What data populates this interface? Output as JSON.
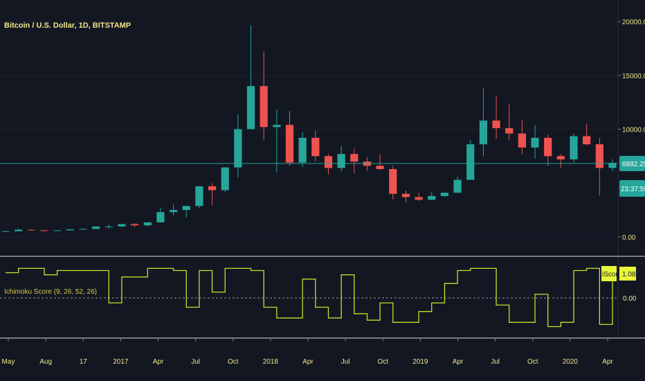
{
  "header": {
    "symbol_title": "Bitcoin / U.S. Dollar, 1D, BITSTAMP",
    "indicator_title": "Ichimoku Score (9, 26, 52, 26)"
  },
  "colors": {
    "background": "#131722",
    "grid": "#1e222d",
    "separator": "#787b86",
    "up_candle": "#26a69a",
    "down_candle": "#ef5350",
    "price_line": "#26a69a",
    "axis_text": "#f0e68c",
    "indicator_line": "#c8e02a",
    "indicator_tag": "#e8f53a"
  },
  "price_scale": {
    "ticks": [
      "20000.00",
      "15000.00",
      "10000.00",
      "0.00"
    ],
    "last_price": "6882.25",
    "countdown": "23:37:59"
  },
  "indicator_scale": {
    "ticks": [
      "0.00"
    ],
    "label": "iScore",
    "value": "1.08"
  },
  "time_axis": {
    "labels": [
      "May",
      "Aug",
      "17",
      "2017",
      "Apr",
      "Jul",
      "Oct",
      "2018",
      "Apr",
      "Jul",
      "Oct",
      "2019",
      "Apr",
      "Jul",
      "Oct",
      "2020",
      "Apr"
    ]
  },
  "chart_data": [
    {
      "type": "candlestick",
      "title": "Bitcoin / U.S. Dollar, 1D, BITSTAMP",
      "ylim": [
        0,
        21000
      ],
      "x": [
        "2016-05",
        "2016-06",
        "2016-07",
        "2016-08",
        "2016-09",
        "2016-10",
        "2016-11",
        "2016-12",
        "2017-01",
        "2017-02",
        "2017-03",
        "2017-04",
        "2017-05",
        "2017-06",
        "2017-07",
        "2017-08",
        "2017-09",
        "2017-10",
        "2017-11",
        "2017-12",
        "2018-01",
        "2018-02",
        "2018-03",
        "2018-04",
        "2018-05",
        "2018-06",
        "2018-07",
        "2018-08",
        "2018-09",
        "2018-10",
        "2018-11",
        "2018-12",
        "2019-01",
        "2019-02",
        "2019-03",
        "2019-04",
        "2019-05",
        "2019-06",
        "2019-07",
        "2019-08",
        "2019-09",
        "2019-10",
        "2019-11",
        "2019-12",
        "2020-01",
        "2020-02",
        "2020-03",
        "2020-04"
      ],
      "close": [
        530,
        670,
        620,
        580,
        610,
        700,
        740,
        960,
        970,
        1190,
        1080,
        1350,
        2300,
        2500,
        2870,
        4700,
        4340,
        6450,
        10000,
        14000,
        10200,
        10400,
        6900,
        9200,
        7500,
        6400,
        7700,
        7000,
        6600,
        6300,
        4000,
        3700,
        3450,
        3800,
        4100,
        5300,
        8600,
        10800,
        10100,
        9600,
        8300,
        9200,
        7500,
        7200,
        9350,
        8600,
        6400,
        6882
      ],
      "high": [
        560,
        780,
        700,
        620,
        630,
        720,
        760,
        980,
        1150,
        1200,
        1290,
        1350,
        2700,
        3000,
        2900,
        4750,
        4990,
        6470,
        11400,
        19666,
        17200,
        11800,
        11700,
        9700,
        9900,
        7700,
        8450,
        8200,
        7400,
        7700,
        6600,
        4300,
        4100,
        4200,
        4100,
        5600,
        9000,
        13800,
        13100,
        12300,
        10900,
        10400,
        9500,
        7700,
        9600,
        10500,
        9200,
        7200
      ],
      "low": [
        440,
        530,
        600,
        470,
        580,
        600,
        690,
        740,
        760,
        920,
        900,
        1000,
        1350,
        2000,
        1800,
        2650,
        2970,
        4150,
        5500,
        10800,
        9000,
        6000,
        6600,
        6500,
        7000,
        5800,
        6100,
        5900,
        6100,
        6200,
        3500,
        3200,
        3350,
        3400,
        3700,
        4100,
        5300,
        7500,
        9100,
        9000,
        7700,
        7300,
        6600,
        6400,
        6900,
        8500,
        3850,
        6100
      ]
    },
    {
      "type": "line",
      "title": "Ichimoku Score (9, 26, 52, 26)",
      "ylim": [
        -1.8,
        1.6
      ],
      "x": [
        "2016-05",
        "2016-06",
        "2016-07",
        "2016-08",
        "2016-09",
        "2016-10",
        "2016-11",
        "2016-12",
        "2017-01",
        "2017-02",
        "2017-03",
        "2017-04",
        "2017-05",
        "2017-06",
        "2017-07",
        "2017-08",
        "2017-09",
        "2017-10",
        "2017-11",
        "2017-12",
        "2018-01",
        "2018-02",
        "2018-03",
        "2018-04",
        "2018-05",
        "2018-06",
        "2018-07",
        "2018-08",
        "2018-09",
        "2018-10",
        "2018-11",
        "2018-12",
        "2019-01",
        "2019-02",
        "2019-03",
        "2019-04",
        "2019-05",
        "2019-06",
        "2019-07",
        "2019-08",
        "2019-09",
        "2019-10",
        "2019-11",
        "2019-12",
        "2020-01",
        "2020-02",
        "2020-03",
        "2020-04"
      ],
      "series": [
        {
          "name": "iScore",
          "values": [
            1.1,
            1.3,
            1.3,
            1.0,
            1.2,
            1.2,
            1.2,
            1.2,
            -0.3,
            0.9,
            0.9,
            1.3,
            1.3,
            1.2,
            -0.5,
            1.2,
            0.2,
            1.3,
            1.3,
            1.2,
            -0.5,
            -1.0,
            -1.0,
            0.8,
            -0.5,
            -1.0,
            1.0,
            -0.8,
            -1.1,
            -0.3,
            -1.2,
            -1.2,
            -0.7,
            -0.3,
            0.6,
            1.2,
            1.3,
            1.3,
            -0.4,
            -1.2,
            -1.2,
            0.1,
            -1.4,
            -1.2,
            1.2,
            1.3,
            -1.3,
            1.08
          ]
        }
      ]
    }
  ]
}
